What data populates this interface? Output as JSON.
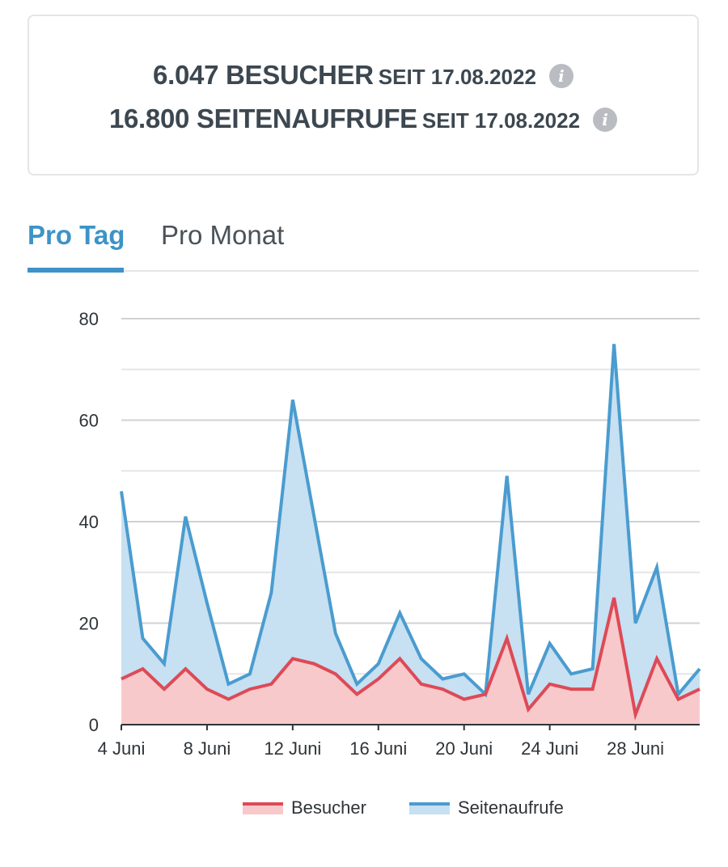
{
  "stats": {
    "visitors_value": "6.047 BESUCHER",
    "visitors_since": "SEIT 17.08.2022",
    "pageviews_value": "16.800 SEITENAUFRUFE",
    "pageviews_since": "SEIT 17.08.2022",
    "info_glyph": "i"
  },
  "tabs": {
    "day_label": "Pro Tag",
    "month_label": "Pro Monat",
    "active": "day"
  },
  "colors": {
    "accent": "#3d93c7",
    "visitors_line": "#dd4a56",
    "visitors_fill": "#f7c9cb",
    "pageviews_line": "#4a9ccf",
    "pageviews_fill": "#c7e0f2",
    "grid": "#d6d9db"
  },
  "chart_data": {
    "type": "area",
    "x": [
      4,
      5,
      6,
      7,
      8,
      9,
      10,
      11,
      12,
      13,
      14,
      15,
      16,
      17,
      18,
      19,
      20,
      21,
      22,
      23,
      24,
      25,
      26,
      27,
      28,
      29,
      30,
      31
    ],
    "x_ticks": [
      4,
      8,
      12,
      16,
      20,
      24,
      28
    ],
    "x_tick_labels": [
      "4 Juni",
      "8 Juni",
      "12 Juni",
      "16 Juni",
      "20 Juni",
      "24 Juni",
      "28 Juni"
    ],
    "y_ticks": [
      0,
      20,
      40,
      60,
      80
    ],
    "y_tick_labels": [
      "0",
      "20",
      "40",
      "60",
      "80"
    ],
    "ylim": [
      0,
      80
    ],
    "xlim": [
      4,
      31
    ],
    "grid": true,
    "minor_grid_step": 10,
    "legend_position": "bottom-center",
    "series": [
      {
        "name": "Besucher",
        "color": "#dd4a56",
        "values": [
          9,
          11,
          7,
          11,
          7,
          5,
          7,
          8,
          13,
          12,
          10,
          6,
          9,
          13,
          8,
          7,
          5,
          6,
          17,
          3,
          8,
          7,
          7,
          25,
          2,
          13,
          5,
          7
        ]
      },
      {
        "name": "Seitenaufrufe",
        "color": "#4a9ccf",
        "values": [
          46,
          17,
          12,
          41,
          24,
          8,
          10,
          26,
          64,
          41,
          18,
          8,
          12,
          22,
          13,
          9,
          10,
          6,
          49,
          6,
          16,
          10,
          11,
          75,
          20,
          31,
          6,
          11
        ]
      }
    ]
  }
}
